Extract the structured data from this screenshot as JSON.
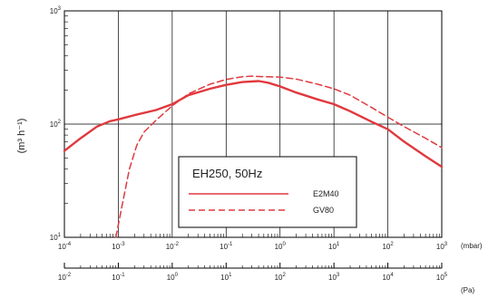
{
  "chart_data": {
    "type": "line",
    "x_scale": "log",
    "y_scale": "log",
    "x_range_mbar": [
      0.0001,
      1000
    ],
    "x_range_pa": [
      0.01,
      100000
    ],
    "y_range": [
      10,
      1000
    ],
    "grid": true,
    "ylabel": "(m³ h⁻¹)",
    "x_unit_top": "(mbar)",
    "x_unit_bottom": "(Pa)",
    "legend": {
      "title": "EH250, 50Hz",
      "placement": "lower-center",
      "entries": [
        "E2M40",
        "GV80"
      ]
    },
    "x_ticks_mbar": [
      {
        "base": "10",
        "exp": "-4"
      },
      {
        "base": "10",
        "exp": "-3"
      },
      {
        "base": "10",
        "exp": "-2"
      },
      {
        "base": "10",
        "exp": "-1"
      },
      {
        "base": "10",
        "exp": "0"
      },
      {
        "base": "10",
        "exp": "1"
      },
      {
        "base": "10",
        "exp": "2"
      },
      {
        "base": "10",
        "exp": "3"
      }
    ],
    "x_ticks_pa": [
      {
        "base": "10",
        "exp": "-2"
      },
      {
        "base": "10",
        "exp": "-1"
      },
      {
        "base": "10",
        "exp": "0"
      },
      {
        "base": "10",
        "exp": "1"
      },
      {
        "base": "10",
        "exp": "2"
      },
      {
        "base": "10",
        "exp": "3"
      },
      {
        "base": "10",
        "exp": "4"
      },
      {
        "base": "10",
        "exp": "5"
      }
    ],
    "y_ticks": [
      {
        "base": "10",
        "exp": "1"
      },
      {
        "base": "10",
        "exp": "2"
      },
      {
        "base": "10",
        "exp": "3"
      }
    ],
    "series": [
      {
        "name": "E2M40",
        "style": "solid",
        "color": "#e0393e",
        "points": [
          [
            0.0001,
            58
          ],
          [
            0.0002,
            75
          ],
          [
            0.0004,
            95
          ],
          [
            0.0007,
            106
          ],
          [
            0.001,
            110
          ],
          [
            0.002,
            120
          ],
          [
            0.005,
            133
          ],
          [
            0.01,
            150
          ],
          [
            0.02,
            180
          ],
          [
            0.05,
            205
          ],
          [
            0.1,
            222
          ],
          [
            0.2,
            235
          ],
          [
            0.4,
            240
          ],
          [
            0.6,
            232
          ],
          [
            1,
            215
          ],
          [
            2,
            190
          ],
          [
            5,
            165
          ],
          [
            10,
            150
          ],
          [
            20,
            130
          ],
          [
            50,
            105
          ],
          [
            100,
            90
          ],
          [
            200,
            70
          ],
          [
            500,
            52
          ],
          [
            1000,
            42
          ]
        ]
      },
      {
        "name": "GV80",
        "style": "dashed",
        "color": "#e0393e",
        "points": [
          [
            0.0009,
            10
          ],
          [
            0.0012,
            20
          ],
          [
            0.0016,
            40
          ],
          [
            0.0022,
            65
          ],
          [
            0.003,
            85
          ],
          [
            0.005,
            108
          ],
          [
            0.01,
            145
          ],
          [
            0.02,
            185
          ],
          [
            0.05,
            225
          ],
          [
            0.1,
            248
          ],
          [
            0.2,
            262
          ],
          [
            0.3,
            265
          ],
          [
            0.5,
            262
          ],
          [
            1,
            260
          ],
          [
            2,
            250
          ],
          [
            5,
            225
          ],
          [
            10,
            205
          ],
          [
            20,
            180
          ],
          [
            50,
            140
          ],
          [
            100,
            115
          ],
          [
            200,
            95
          ],
          [
            500,
            75
          ],
          [
            1000,
            62
          ]
        ]
      }
    ]
  }
}
